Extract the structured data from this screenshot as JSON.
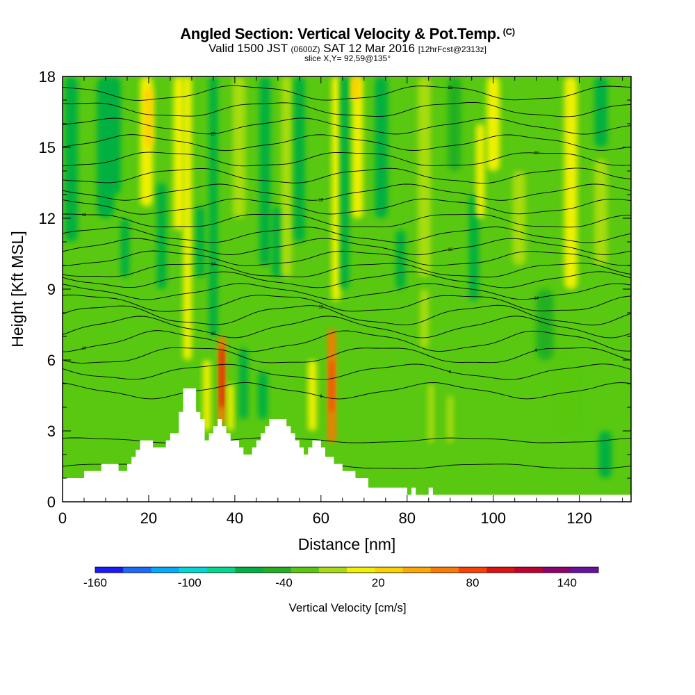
{
  "chart_data": {
    "type": "heatmap",
    "title": "Angled Section: Vertical Velocity & Pot.Temp.",
    "title_unit": "(C)",
    "subtitle_main": "Valid 1500 JST",
    "subtitle_z": "(0600Z)",
    "subtitle_date": "SAT 12 Mar 2016",
    "subtitle_fcst": "[12hrFcst@2313z]",
    "slice_label": "slice X,Y= 92,59@135°",
    "xlabel": "Distance [nm]",
    "ylabel": "Height [Kft MSL]",
    "xlim": [
      0,
      132
    ],
    "ylim": [
      0,
      18
    ],
    "x_ticks": [
      "0",
      "20",
      "40",
      "60",
      "80",
      "100",
      "120"
    ],
    "y_ticks": [
      "0",
      "3",
      "6",
      "9",
      "12",
      "15",
      "18"
    ],
    "colorbar": {
      "title": "Vertical Velocity [cm/s]",
      "range": [
        -160,
        160
      ],
      "labels": [
        "-160",
        "-100",
        "-40",
        "20",
        "80",
        "140"
      ],
      "colors": [
        "#1a1aff",
        "#1a6aff",
        "#00aaff",
        "#00d8d8",
        "#00d890",
        "#00b040",
        "#20b020",
        "#58c810",
        "#a8dc10",
        "#f0f000",
        "#ffd000",
        "#ffa800",
        "#ff7800",
        "#ff4000",
        "#e01010",
        "#c00030",
        "#900070",
        "#6a10a0"
      ]
    },
    "cell_colors": [
      "#00b040",
      "#20b020",
      "#58c810",
      "#a8dc10",
      "#f0f000",
      "#ffd000",
      "#ffa800",
      "#ff7800",
      "#ff4000",
      "#e01010",
      "#c00030",
      "#900070"
    ],
    "bands": [
      {
        "x": 2,
        "y0": 11,
        "y1": 18,
        "w": 3,
        "v": -30
      },
      {
        "x": 10,
        "y0": 12,
        "y1": 18,
        "w": 4,
        "v": -30
      },
      {
        "x": 12,
        "y0": 13,
        "y1": 18,
        "w": 3,
        "v": -40
      },
      {
        "x": 14.5,
        "y0": 9.5,
        "y1": 12,
        "w": 2,
        "v": -35
      },
      {
        "x": 19.5,
        "y0": 12.5,
        "y1": 18,
        "w": 3,
        "v": 45
      },
      {
        "x": 20,
        "y0": 15,
        "y1": 17.5,
        "w": 2,
        "v": 60
      },
      {
        "x": 23,
        "y0": 9,
        "y1": 13.5,
        "w": 2.2,
        "v": -45
      },
      {
        "x": 27,
        "y0": 11.5,
        "y1": 18,
        "w": 2.5,
        "v": 50
      },
      {
        "x": 29,
        "y0": 6,
        "y1": 18,
        "w": 2,
        "v": 40
      },
      {
        "x": 32,
        "y0": 9.5,
        "y1": 12.5,
        "w": 2,
        "v": -35
      },
      {
        "x": 33.5,
        "y0": 3,
        "y1": 6,
        "w": 1.8,
        "v": 40
      },
      {
        "x": 37,
        "y0": 3.3,
        "y1": 7,
        "w": 1.6,
        "v": 110
      },
      {
        "x": 37,
        "y0": 4,
        "y1": 6.5,
        "w": 0.8,
        "v": 150
      },
      {
        "x": 35,
        "y0": 7,
        "y1": 18,
        "w": 2,
        "v": -30
      },
      {
        "x": 39,
        "y0": 3,
        "y1": 5,
        "w": 1.5,
        "v": 40
      },
      {
        "x": 42,
        "y0": 3.5,
        "y1": 6.5,
        "w": 2,
        "v": -40
      },
      {
        "x": 41,
        "y0": 12,
        "y1": 18,
        "w": 3,
        "v": 35
      },
      {
        "x": 47,
        "y0": 10,
        "y1": 18,
        "w": 2.5,
        "v": -60
      },
      {
        "x": 50,
        "y0": 9.5,
        "y1": 12.5,
        "w": 2.8,
        "v": -65
      },
      {
        "x": 46.5,
        "y0": 3.5,
        "y1": 5.5,
        "w": 2.2,
        "v": -45
      },
      {
        "x": 52,
        "y0": 9.5,
        "y1": 18,
        "w": 2.5,
        "v": 35
      },
      {
        "x": 55,
        "y0": 11,
        "y1": 18,
        "w": 2.5,
        "v": -30
      },
      {
        "x": 58,
        "y0": 3,
        "y1": 6,
        "w": 2,
        "v": 40
      },
      {
        "x": 62.5,
        "y0": 2.5,
        "y1": 7.3,
        "w": 1.8,
        "v": 105
      },
      {
        "x": 62.5,
        "y0": 3.8,
        "y1": 6,
        "w": 0.9,
        "v": 125
      },
      {
        "x": 63.5,
        "y0": 8.5,
        "y1": 18,
        "w": 2,
        "v": 40
      },
      {
        "x": 65.5,
        "y0": 9,
        "y1": 18,
        "w": 2,
        "v": -60
      },
      {
        "x": 68.5,
        "y0": 12,
        "y1": 18,
        "w": 2.5,
        "v": 45
      },
      {
        "x": 68,
        "y0": 17,
        "y1": 18,
        "w": 2,
        "v": 70
      },
      {
        "x": 74,
        "y0": 12,
        "y1": 18,
        "w": 3,
        "v": -30
      },
      {
        "x": 78.5,
        "y0": 9,
        "y1": 11.5,
        "w": 2.2,
        "v": -45
      },
      {
        "x": 84,
        "y0": 9.5,
        "y1": 18,
        "w": 3,
        "v": 35
      },
      {
        "x": 84,
        "y0": 6.5,
        "y1": 9,
        "w": 2,
        "v": 25
      },
      {
        "x": 85.5,
        "y0": 2.5,
        "y1": 5,
        "w": 1.5,
        "v": 30
      },
      {
        "x": 90,
        "y0": 2.5,
        "y1": 4.5,
        "w": 1.5,
        "v": 30
      },
      {
        "x": 91,
        "y0": 14,
        "y1": 18,
        "w": 3,
        "v": -20
      },
      {
        "x": 95.5,
        "y0": 8.5,
        "y1": 13,
        "w": 2.2,
        "v": -40
      },
      {
        "x": 97,
        "y0": 12,
        "y1": 16,
        "w": 2,
        "v": 40
      },
      {
        "x": 100,
        "y0": 14,
        "y1": 18,
        "w": 3,
        "v": 45
      },
      {
        "x": 106,
        "y0": 10,
        "y1": 14,
        "w": 3,
        "v": 25
      },
      {
        "x": 112,
        "y0": 6,
        "y1": 9,
        "w": 4,
        "v": -20
      },
      {
        "x": 118,
        "y0": 9,
        "y1": 18,
        "w": 3,
        "v": 40
      },
      {
        "x": 125,
        "y0": 10,
        "y1": 14.5,
        "w": 3,
        "v": 25
      },
      {
        "x": 125,
        "y0": 15,
        "y1": 18,
        "w": 3,
        "v": -30
      },
      {
        "x": 117,
        "y0": 3,
        "y1": 6,
        "w": 5,
        "v": 15
      },
      {
        "x": 126,
        "y0": 1,
        "y1": 3,
        "w": 3,
        "v": -30
      }
    ],
    "terrain": [
      [
        0,
        1
      ],
      [
        5,
        1
      ],
      [
        5,
        1.3
      ],
      [
        9,
        1.3
      ],
      [
        9,
        1.6
      ],
      [
        13,
        1.6
      ],
      [
        13,
        1.3
      ],
      [
        15,
        1.3
      ],
      [
        15,
        1.6
      ],
      [
        16,
        1.6
      ],
      [
        16,
        1.9
      ],
      [
        17,
        1.9
      ],
      [
        17,
        2.2
      ],
      [
        18,
        2.2
      ],
      [
        18,
        2.6
      ],
      [
        21,
        2.6
      ],
      [
        21,
        2.3
      ],
      [
        24,
        2.3
      ],
      [
        24,
        2.6
      ],
      [
        25,
        2.6
      ],
      [
        25,
        2.9
      ],
      [
        27,
        2.9
      ],
      [
        27,
        3.8
      ],
      [
        28,
        3.8
      ],
      [
        28,
        4.8
      ],
      [
        31,
        4.8
      ],
      [
        31,
        3.8
      ],
      [
        32,
        3.8
      ],
      [
        32,
        3.5
      ],
      [
        33,
        3.5
      ],
      [
        33,
        2.6
      ],
      [
        34,
        2.6
      ],
      [
        34,
        2.9
      ],
      [
        35,
        2.9
      ],
      [
        35,
        3.2
      ],
      [
        36,
        3.2
      ],
      [
        36,
        3.5
      ],
      [
        37,
        3.5
      ],
      [
        37,
        3.2
      ],
      [
        38,
        3.2
      ],
      [
        38,
        2.9
      ],
      [
        39,
        2.9
      ],
      [
        39,
        2.6
      ],
      [
        41,
        2.6
      ],
      [
        41,
        2.3
      ],
      [
        42,
        2.3
      ],
      [
        42,
        2
      ],
      [
        44,
        2
      ],
      [
        44,
        2.3
      ],
      [
        45,
        2.3
      ],
      [
        45,
        2.6
      ],
      [
        46,
        2.6
      ],
      [
        46,
        2.9
      ],
      [
        47,
        2.9
      ],
      [
        47,
        3.2
      ],
      [
        48,
        3.2
      ],
      [
        48,
        3.5
      ],
      [
        52,
        3.5
      ],
      [
        52,
        3.2
      ],
      [
        53,
        3.2
      ],
      [
        53,
        2.9
      ],
      [
        54,
        2.9
      ],
      [
        54,
        2.6
      ],
      [
        55,
        2.6
      ],
      [
        55,
        2.3
      ],
      [
        56,
        2.3
      ],
      [
        56,
        2
      ],
      [
        57,
        2
      ],
      [
        57,
        2.3
      ],
      [
        58,
        2.3
      ],
      [
        58,
        2.6
      ],
      [
        60,
        2.6
      ],
      [
        60,
        2.3
      ],
      [
        61,
        2.3
      ],
      [
        61,
        1.9
      ],
      [
        63,
        1.9
      ],
      [
        63,
        1.6
      ],
      [
        65,
        1.6
      ],
      [
        65,
        1.3
      ],
      [
        68,
        1.3
      ],
      [
        68,
        1
      ],
      [
        71,
        1
      ],
      [
        71,
        0.6
      ],
      [
        80,
        0.6
      ],
      [
        80,
        0.3
      ],
      [
        81,
        0.3
      ],
      [
        81,
        0.6
      ],
      [
        82,
        0.6
      ],
      [
        82,
        0.3
      ],
      [
        85,
        0.3
      ],
      [
        85,
        0.6
      ],
      [
        86,
        0.6
      ],
      [
        86,
        0.3
      ],
      [
        132,
        0.3
      ]
    ],
    "contours": [
      {
        "y": 1.5,
        "amp": 0.1,
        "label": ""
      },
      {
        "y": 2.6,
        "amp": 0.1,
        "label": ""
      },
      {
        "y": 4.7,
        "amp": 0.3,
        "label": "6"
      },
      {
        "y": 5.5,
        "amp": 0.3,
        "label": "8"
      },
      {
        "y": 6.2,
        "amp": 0.35,
        "label": "9"
      },
      {
        "y": 6.8,
        "amp": 0.4,
        "label": "10"
      },
      {
        "y": 7.4,
        "amp": 0.4,
        "label": "10"
      },
      {
        "y": 7.9,
        "amp": 0.4,
        "label": "12"
      },
      {
        "y": 8.4,
        "amp": 0.35,
        "label": ""
      },
      {
        "y": 8.9,
        "amp": 0.3,
        "label": "14"
      },
      {
        "y": 9.4,
        "amp": 0.3,
        "label": ""
      },
      {
        "y": 9.8,
        "amp": 0.3,
        "label": "14"
      },
      {
        "y": 10.3,
        "amp": 0.3,
        "label": ""
      },
      {
        "y": 10.8,
        "amp": 0.3,
        "label": "16"
      },
      {
        "y": 11.3,
        "amp": 0.3,
        "label": ""
      },
      {
        "y": 11.9,
        "amp": 0.3,
        "label": "18"
      },
      {
        "y": 12.5,
        "amp": 0.3,
        "label": ""
      },
      {
        "y": 13.1,
        "amp": 0.3,
        "label": "18"
      },
      {
        "y": 13.8,
        "amp": 0.3,
        "label": ""
      },
      {
        "y": 14.5,
        "amp": 0.3,
        "label": "20"
      },
      {
        "y": 15.2,
        "amp": 0.3,
        "label": ""
      },
      {
        "y": 15.9,
        "amp": 0.3,
        "label": "20"
      },
      {
        "y": 16.6,
        "amp": 0.3,
        "label": ""
      },
      {
        "y": 17.3,
        "amp": 0.3,
        "label": "22"
      }
    ]
  }
}
